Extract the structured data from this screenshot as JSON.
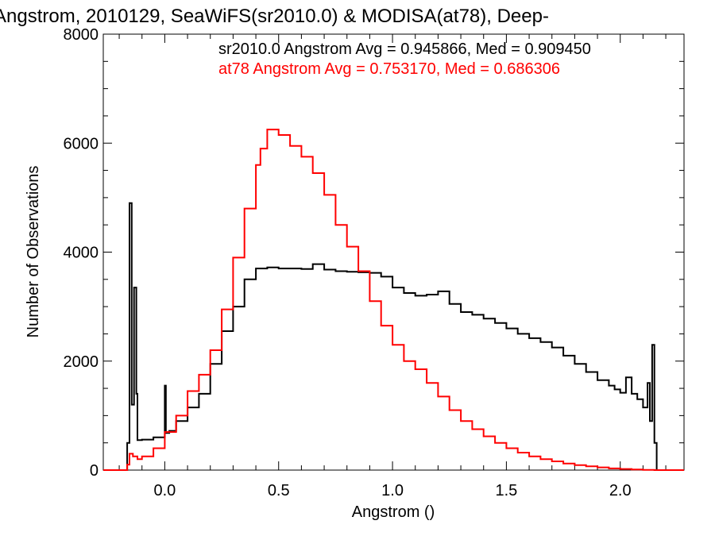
{
  "chart_data": {
    "type": "line",
    "title": "Angstrom, 2010129, SeaWiFS(sr2010.0) & MODISA(at78), Deep-",
    "xlabel": "Angstrom ()",
    "ylabel": "Number of Observations",
    "xlim": [
      -0.27,
      2.28
    ],
    "ylim": [
      0,
      8000
    ],
    "grid": false,
    "x_ticks": [
      0.0,
      0.5,
      1.0,
      1.5,
      2.0
    ],
    "x_tick_labels": [
      "0.0",
      "0.5",
      "1.0",
      "1.5",
      "2.0"
    ],
    "y_ticks": [
      0,
      2000,
      4000,
      6000,
      8000
    ],
    "y_tick_labels": [
      "0",
      "2000",
      "4000",
      "6000",
      "8000"
    ],
    "annotations": [
      {
        "text": "sr2010.0 Angstrom Avg = 0.945866, Med = 0.909450",
        "color": "#000000"
      },
      {
        "text": "at78 Angstrom Avg = 0.753170, Med = 0.686306",
        "color": "#ff0000"
      }
    ],
    "series": [
      {
        "color": "#000000",
        "x": [
          -0.27,
          -0.17,
          -0.165,
          -0.155,
          -0.145,
          -0.135,
          -0.125,
          -0.12,
          -0.1,
          -0.05,
          0.0,
          0.005,
          0.02,
          0.05,
          0.1,
          0.15,
          0.2,
          0.25,
          0.3,
          0.35,
          0.4,
          0.45,
          0.5,
          0.55,
          0.6,
          0.65,
          0.7,
          0.75,
          0.8,
          0.85,
          0.9,
          0.95,
          1.0,
          1.05,
          1.1,
          1.15,
          1.2,
          1.25,
          1.3,
          1.35,
          1.4,
          1.45,
          1.5,
          1.55,
          1.6,
          1.65,
          1.7,
          1.75,
          1.8,
          1.85,
          1.9,
          1.95,
          1.975,
          2.0,
          2.025,
          2.05,
          2.075,
          2.1,
          2.12,
          2.13,
          2.14,
          2.15,
          2.16,
          2.28
        ],
        "y": [
          0,
          0,
          500,
          4900,
          1200,
          3350,
          1400,
          550,
          560,
          600,
          1550,
          680,
          720,
          900,
          1150,
          1400,
          1950,
          2550,
          3000,
          3500,
          3700,
          3720,
          3700,
          3700,
          3690,
          3780,
          3680,
          3650,
          3640,
          3630,
          3620,
          3550,
          3350,
          3250,
          3200,
          3220,
          3280,
          3050,
          2900,
          2850,
          2780,
          2700,
          2600,
          2500,
          2420,
          2350,
          2250,
          2100,
          1950,
          1800,
          1650,
          1550,
          1480,
          1420,
          1700,
          1400,
          1300,
          1150,
          1600,
          900,
          2300,
          500,
          0,
          0
        ]
      },
      {
        "color": "#ff0000",
        "x": [
          -0.27,
          -0.17,
          -0.165,
          -0.155,
          -0.14,
          -0.12,
          -0.1,
          -0.05,
          0.0,
          0.05,
          0.1,
          0.15,
          0.2,
          0.25,
          0.3,
          0.35,
          0.4,
          0.42,
          0.45,
          0.5,
          0.55,
          0.6,
          0.65,
          0.7,
          0.75,
          0.8,
          0.85,
          0.9,
          0.95,
          1.0,
          1.05,
          1.1,
          1.15,
          1.2,
          1.25,
          1.3,
          1.35,
          1.4,
          1.45,
          1.5,
          1.55,
          1.6,
          1.65,
          1.7,
          1.75,
          1.8,
          1.85,
          1.9,
          1.95,
          2.0,
          2.05,
          2.1,
          2.15,
          2.28
        ],
        "y": [
          0,
          0,
          100,
          300,
          250,
          200,
          250,
          400,
          700,
          1000,
          1450,
          1750,
          2200,
          2950,
          3900,
          4800,
          5600,
          5900,
          6250,
          6150,
          5950,
          5750,
          5450,
          5050,
          4500,
          4100,
          3650,
          3100,
          2650,
          2300,
          2000,
          1850,
          1600,
          1350,
          1100,
          900,
          750,
          620,
          500,
          400,
          320,
          250,
          200,
          160,
          120,
          90,
          70,
          50,
          30,
          20,
          10,
          5,
          0,
          0
        ]
      }
    ]
  }
}
